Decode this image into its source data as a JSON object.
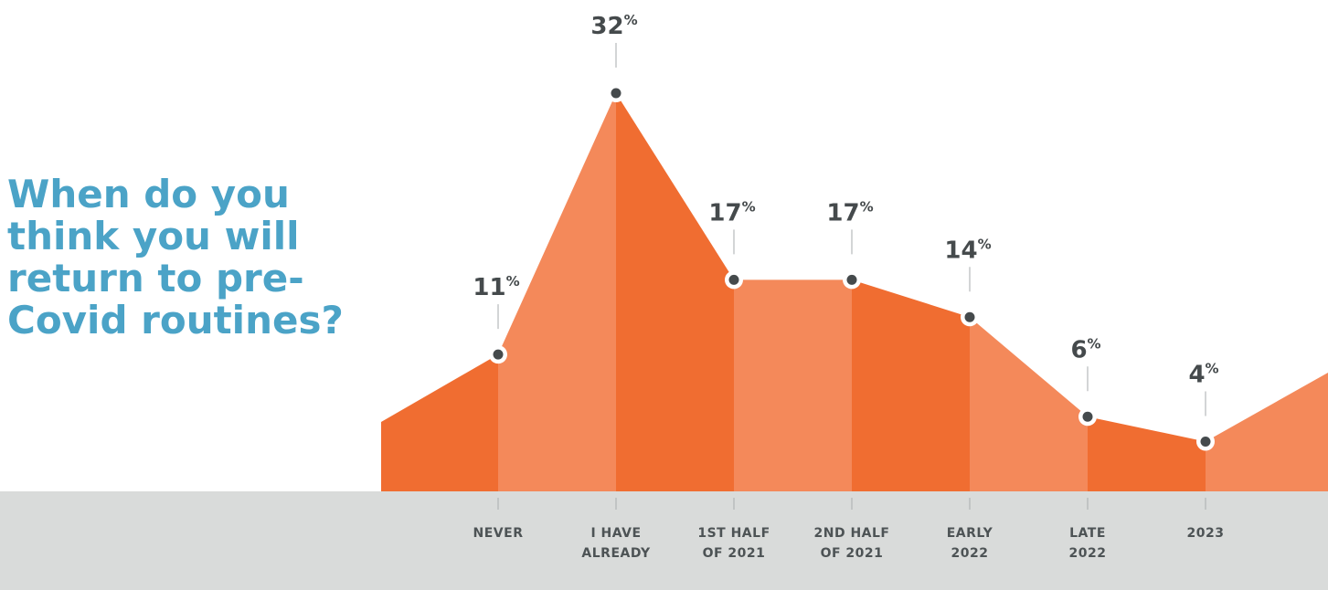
{
  "title": "When do you think you will return to pre-Covid routines?",
  "colors": {
    "title": "#4ba3c7",
    "area_dark": "#f06d31",
    "area_light": "#f4895a",
    "ground": "#d9dbda",
    "marker": "#454a4c",
    "text": "#454a4c"
  },
  "chart_data": {
    "type": "area",
    "title": "When do you think you will return to pre-Covid routines?",
    "xlabel": "",
    "ylabel": "",
    "unit": "%",
    "categories": [
      [
        "NEVER"
      ],
      [
        "I HAVE",
        "ALREADY"
      ],
      [
        "1ST HALF",
        "OF 2021"
      ],
      [
        "2ND HALF",
        "OF 2021"
      ],
      [
        "EARLY",
        "2022"
      ],
      [
        "LATE",
        "2022"
      ],
      [
        "2023"
      ]
    ],
    "values": [
      11,
      32,
      17,
      17,
      14,
      6,
      4
    ],
    "value_labels": [
      "11",
      "32",
      "17",
      "17",
      "14",
      "6",
      "4"
    ],
    "ylim": [
      0,
      32
    ],
    "grid": false,
    "legend": "none"
  }
}
